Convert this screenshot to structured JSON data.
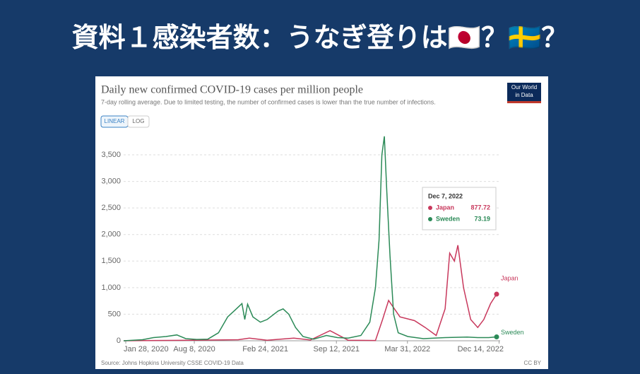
{
  "slide": {
    "title": "資料１感染者数：うなぎ登りは🇯🇵？🇸🇪？"
  },
  "chart_data": {
    "type": "line",
    "title": "Daily new confirmed COVID-19 cases per million people",
    "subtitle": "7-day rolling average. Due to limited testing, the number of confirmed cases is lower than the true number of infections.",
    "logo": [
      "Our World",
      "in Data"
    ],
    "buttons": [
      "LINEAR",
      "LOG"
    ],
    "source": "Source: Johns Hopkins University CSSE COVID-19 Data",
    "license": "CC BY",
    "tooltip": {
      "date": "Dec 7, 2022"
    },
    "xlim": [
      "2020-01-22",
      "2022-12-07"
    ],
    "xticks": [
      {
        "value": "2020-01-28",
        "label": "Jan 28, 2020"
      },
      {
        "value": "2020-08-08",
        "label": "Aug 8, 2020"
      },
      {
        "value": "2021-02-24",
        "label": "Feb 24, 2021"
      },
      {
        "value": "2021-09-12",
        "label": "Sep 12, 2021"
      },
      {
        "value": "2022-03-31",
        "label": "Mar 31, 2022"
      },
      {
        "value": "2022-12-14",
        "label": "Dec 14, 2022"
      }
    ],
    "ylim": [
      0,
      3900
    ],
    "yticks": [
      0,
      500,
      {
        "value": 1000,
        "label": "1,000"
      },
      {
        "value": 1500,
        "label": "1,500"
      },
      {
        "value": 2000,
        "label": "2,000"
      },
      {
        "value": 2500,
        "label": "2,500"
      },
      {
        "value": 3000,
        "label": "3,000"
      },
      {
        "value": 3500,
        "label": "3,500"
      }
    ],
    "grid": true,
    "series": [
      {
        "name": "Japan",
        "color": "#c8385c",
        "x": [
          "2020-01-22",
          "2020-04-15",
          "2020-08-05",
          "2020-12-10",
          "2021-01-10",
          "2021-03-01",
          "2021-05-15",
          "2021-07-01",
          "2021-08-25",
          "2021-10-15",
          "2021-12-31",
          "2022-01-20",
          "2022-02-06",
          "2022-03-10",
          "2022-04-20",
          "2022-05-20",
          "2022-06-20",
          "2022-07-15",
          "2022-07-28",
          "2022-08-10",
          "2022-08-20",
          "2022-09-05",
          "2022-09-25",
          "2022-10-15",
          "2022-11-01",
          "2022-11-20",
          "2022-12-07"
        ],
        "values": [
          0,
          5,
          10,
          20,
          50,
          10,
          50,
          15,
          190,
          10,
          5,
          400,
          760,
          450,
          380,
          250,
          100,
          600,
          1650,
          1500,
          1800,
          1000,
          400,
          250,
          400,
          700,
          877.72
        ]
      },
      {
        "name": "Sweden",
        "color": "#2b8a57",
        "x": [
          "2020-01-22",
          "2020-03-15",
          "2020-04-15",
          "2020-05-20",
          "2020-06-20",
          "2020-07-15",
          "2020-08-15",
          "2020-09-15",
          "2020-10-15",
          "2020-11-10",
          "2020-12-01",
          "2020-12-20",
          "2020-12-28",
          "2021-01-05",
          "2021-01-20",
          "2021-02-10",
          "2021-03-01",
          "2021-04-01",
          "2021-04-15",
          "2021-05-01",
          "2021-05-20",
          "2021-06-10",
          "2021-07-10",
          "2021-08-15",
          "2021-09-15",
          "2021-10-15",
          "2021-11-20",
          "2021-12-15",
          "2021-12-31",
          "2022-01-10",
          "2022-01-18",
          "2022-01-25",
          "2022-02-01",
          "2022-02-10",
          "2022-02-20",
          "2022-03-05",
          "2022-04-01",
          "2022-05-15",
          "2022-07-15",
          "2022-09-15",
          "2022-10-15",
          "2022-11-15",
          "2022-12-07"
        ],
        "values": [
          0,
          20,
          60,
          80,
          110,
          40,
          25,
          30,
          150,
          450,
          580,
          700,
          400,
          690,
          450,
          350,
          400,
          560,
          600,
          500,
          250,
          80,
          30,
          100,
          60,
          50,
          100,
          350,
          1000,
          1900,
          3500,
          3850,
          2800,
          1600,
          500,
          150,
          80,
          40,
          60,
          70,
          60,
          60,
          73.19
        ]
      }
    ]
  }
}
